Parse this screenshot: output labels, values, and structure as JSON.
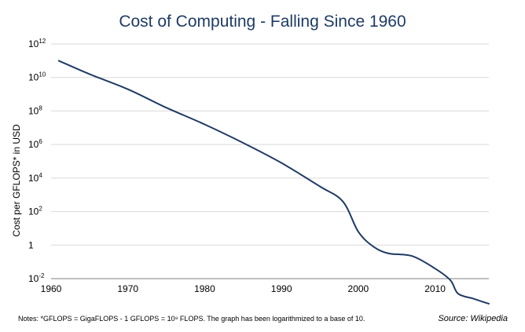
{
  "chart_data": {
    "type": "line",
    "title": "Cost of Computing - Falling Since 1960",
    "xlabel": "",
    "ylabel": "Cost per GFLOPS* in USD",
    "xlim": [
      1960,
      2017
    ],
    "x_ticks": [
      1960,
      1970,
      1980,
      1990,
      2000,
      2010
    ],
    "y_scale": "log10",
    "ylim_log10": [
      -2,
      12
    ],
    "y_ticks": [
      {
        "label": "10",
        "exp": "12",
        "log": 12
      },
      {
        "label": "10",
        "exp": "10",
        "log": 10
      },
      {
        "label": "10",
        "exp": "8",
        "log": 8
      },
      {
        "label": "10",
        "exp": "6",
        "log": 6
      },
      {
        "label": "10",
        "exp": "4",
        "log": 4
      },
      {
        "label": "10",
        "exp": "2",
        "log": 2
      },
      {
        "label": "1",
        "exp": "",
        "log": 0
      },
      {
        "label": "10",
        "exp": "-2",
        "log": -2
      }
    ],
    "grid": true,
    "series": [
      {
        "name": "Cost per GFLOPS",
        "color": "#1f3b64",
        "x": [
          1961,
          1965,
          1970,
          1975,
          1980,
          1985,
          1990,
          1995,
          1998,
          2000,
          2002,
          2004,
          2007,
          2010,
          2012,
          2013,
          2015,
          2017
        ],
        "log10_values": [
          11.0,
          10.2,
          9.3,
          8.2,
          7.2,
          6.1,
          4.9,
          3.5,
          2.6,
          0.8,
          -0.1,
          -0.5,
          -0.65,
          -1.4,
          -2.1,
          -2.9,
          -3.2,
          -3.5
        ]
      }
    ],
    "note": "Notes: *GFLOPS = GigaFLOPS - 1 GFLOPS = 10⁹ FLOPS. The graph has been logarithmized to a base of 10.",
    "source": "Source: Wikipedia"
  }
}
